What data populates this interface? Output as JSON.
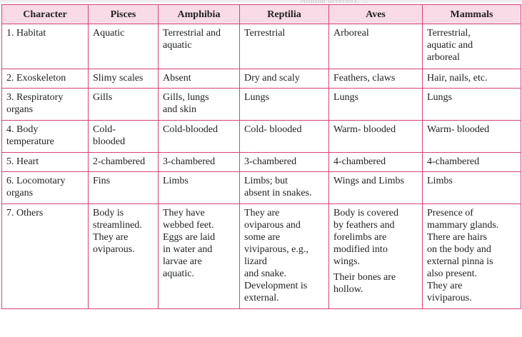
{
  "bleed_text": "Animal diversity, ...",
  "table": {
    "headers": [
      "Character",
      "Pisces",
      "Amphibia",
      "Reptilia",
      "Aves",
      "Mammals"
    ],
    "rows": [
      [
        "1. Habitat",
        "Aquatic",
        "Terrestrial and\naquatic",
        "Terrestrial",
        "Arboreal",
        "Terrestrial,\naquatic and\narboreal"
      ],
      [
        "2. Exoskeleton",
        "Slimy scales",
        "Absent",
        "Dry and scaly",
        "Feathers, claws",
        "Hair, nails, etc."
      ],
      [
        "3. Respiratory\n    organs",
        "Gills",
        "Gills, lungs\nand skin",
        "Lungs",
        "Lungs",
        "Lungs"
      ],
      [
        "4. Body\n    temperature",
        "Cold-\nblooded",
        "Cold-blooded",
        "Cold- blooded",
        "Warm- blooded",
        "Warm- blooded"
      ],
      [
        "5. Heart",
        "2-chambered",
        "3-chambered",
        "3-chambered",
        "4-chambered",
        "4-chambered"
      ],
      [
        "6. Locomotary\n    organs",
        "Fins",
        "Limbs",
        "Limbs; but\nabsent in snakes.",
        "Wings and Limbs",
        "Limbs"
      ],
      [
        "7. Others",
        "Body is\nstreamlined.\nThey are\noviparous.",
        "They have\nwebbed feet.\nEggs are laid\nin water and\nlarvae are\naquatic.",
        "They are\noviparous and\nsome are\nviviparous, e.g.,\nlizard\nand snake.\nDevelopment is\nexternal.",
        "Body is covered\nby feathers and\nforelimbs are\nmodified into\nwings.",
        "Presence of\nmammary glands.\nThere are hairs\non the body and\nexternal pinna is\nalso present.\nThey are\nviviparous."
      ]
    ],
    "aves_others_extra": "Their bones are\nhollow."
  },
  "colors": {
    "border": "#d9417a",
    "header_bg": "#f8dbe6"
  }
}
